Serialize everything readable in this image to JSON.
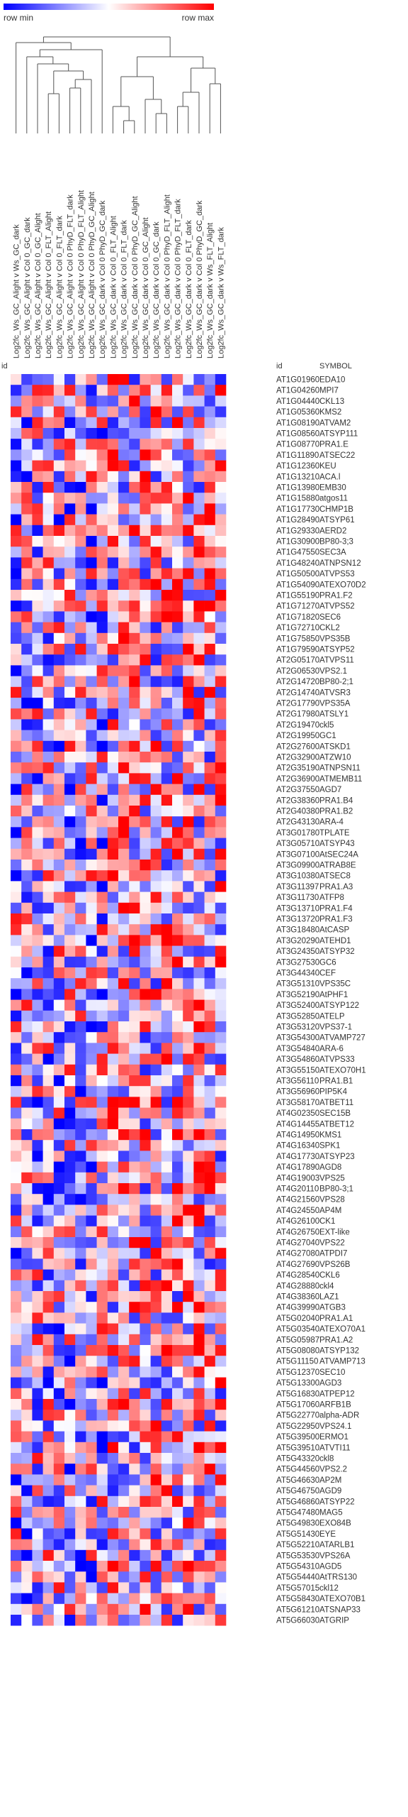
{
  "legend": {
    "min_label": "row min",
    "max_label": "row max",
    "min_color": "#0000ff",
    "mid_color": "#ffffff",
    "max_color": "#ff0000"
  },
  "headers": {
    "id_left": "id",
    "id_right": "id",
    "symbol": "SYMBOL"
  },
  "chart_data": {
    "type": "heatmap",
    "columns": [
      "Log2fc_Ws_GC_Alight v Ws_GC_dark",
      "Log2fc_Ws_GC_Alight v Col 0_GC_dark",
      "Log2fc_Ws_GC_Alight v Col 0_GC_Alight",
      "Log2fc_Ws_GC_Alight v Col 0_FLT_Alight",
      "Log2fc_Ws_GC_Alight v Col 0_FLT_dark",
      "Log2fc_Ws_GC_Alight v Col 0 PhyD_FLT_dark",
      "Log2fc_Ws_GC_Alight v Col 0 PhyD_FLT_Alight",
      "Log2fc_Ws_GC_Alight v Col 0 PhyD_GC_Alight",
      "Log2fc_Ws_GC_dark v Col 0 PhyD_GC_dark",
      "Log2fc_Ws_GC_dark v Col 0_FLT_Alight",
      "Log2fc_Ws_GC_dark v Col 0_FLT_dark",
      "Log2fc_Ws_GC_dark v Col 0 PhyD_GC_Alight",
      "Log2fc_Ws_GC_dark v Col 0_GC_Alight",
      "Log2fc_Ws_GC_dark v Col 0_GC_dark",
      "Log2fc_Ws_GC_dark v Col 0 PhyD_FLT_Alight",
      "Log2fc_Ws_GC_dark v Col 0 PhyD_FLT_dark",
      "Log2fc_Ws_GC_dark v Col 0_FLT_dark",
      "Log2fc_Ws_GC_dark v Col 0 PhyD_GC_dark",
      "Log2fc_Ws_GC_dark v Ws_FLT_Alight",
      "Log2fc_Ws_GC_dark v Ws_FLT_dark"
    ],
    "rows": [
      {
        "id": "AT1G01960",
        "symbol": "EDA10"
      },
      {
        "id": "AT1G04260",
        "symbol": "MPI7"
      },
      {
        "id": "AT1G04440",
        "symbol": "CKL13"
      },
      {
        "id": "AT1G05360",
        "symbol": "KMS2"
      },
      {
        "id": "AT1G08190",
        "symbol": "ATVAM2"
      },
      {
        "id": "AT1G08560",
        "symbol": "ATSYP111"
      },
      {
        "id": "AT1G08770",
        "symbol": "PRA1.E"
      },
      {
        "id": "AT1G11890",
        "symbol": "ATSEC22"
      },
      {
        "id": "AT1G12360",
        "symbol": "KEU"
      },
      {
        "id": "AT1G13210",
        "symbol": "ACA.l"
      },
      {
        "id": "AT1G13980",
        "symbol": "EMB30"
      },
      {
        "id": "AT1G15880",
        "symbol": "atgos11"
      },
      {
        "id": "AT1G17730",
        "symbol": "CHMP1B"
      },
      {
        "id": "AT1G28490",
        "symbol": "ATSYP61"
      },
      {
        "id": "AT1G29330",
        "symbol": "AERD2"
      },
      {
        "id": "AT1G30900",
        "symbol": "BP80-3;3"
      },
      {
        "id": "AT1G47550",
        "symbol": "SEC3A"
      },
      {
        "id": "AT1G48240",
        "symbol": "ATNPSN12"
      },
      {
        "id": "AT1G50500",
        "symbol": "ATVPS53"
      },
      {
        "id": "AT1G54090",
        "symbol": "ATEXO70D2"
      },
      {
        "id": "AT1G55190",
        "symbol": "PRA1.F2"
      },
      {
        "id": "AT1G71270",
        "symbol": "ATVPS52"
      },
      {
        "id": "AT1G71820",
        "symbol": "SEC6"
      },
      {
        "id": "AT1G72710",
        "symbol": "CKL2"
      },
      {
        "id": "AT1G75850",
        "symbol": "VPS35B"
      },
      {
        "id": "AT1G79590",
        "symbol": "ATSYP52"
      },
      {
        "id": "AT2G05170",
        "symbol": "ATVPS11"
      },
      {
        "id": "AT2G06530",
        "symbol": "VPS2.1"
      },
      {
        "id": "AT2G14720",
        "symbol": "BP80-2;1"
      },
      {
        "id": "AT2G14740",
        "symbol": "ATVSR3"
      },
      {
        "id": "AT2G17790",
        "symbol": "VPS35A"
      },
      {
        "id": "AT2G17980",
        "symbol": "ATSLY1"
      },
      {
        "id": "AT2G19470",
        "symbol": "ckl5"
      },
      {
        "id": "AT2G19950",
        "symbol": "GC1"
      },
      {
        "id": "AT2G27600",
        "symbol": "ATSKD1"
      },
      {
        "id": "AT2G32900",
        "symbol": "ATZW10"
      },
      {
        "id": "AT2G35190",
        "symbol": "ATNPSN11"
      },
      {
        "id": "AT2G36900",
        "symbol": "ATMEMB11"
      },
      {
        "id": "AT2G37550",
        "symbol": "AGD7"
      },
      {
        "id": "AT2G38360",
        "symbol": "PRA1.B4"
      },
      {
        "id": "AT2G40380",
        "symbol": "PRA1.B2"
      },
      {
        "id": "AT2G43130",
        "symbol": "ARA-4"
      },
      {
        "id": "AT3G01780",
        "symbol": "TPLATE"
      },
      {
        "id": "AT3G05710",
        "symbol": "ATSYP43"
      },
      {
        "id": "AT3G07100",
        "symbol": "AtSEC24A"
      },
      {
        "id": "AT3G09900",
        "symbol": "ATRAB8E"
      },
      {
        "id": "AT3G10380",
        "symbol": "ATSEC8"
      },
      {
        "id": "AT3G11397",
        "symbol": "PRA1.A3"
      },
      {
        "id": "AT3G11730",
        "symbol": "ATFP8"
      },
      {
        "id": "AT3G13710",
        "symbol": "PRA1.F4"
      },
      {
        "id": "AT3G13720",
        "symbol": "PRA1.F3"
      },
      {
        "id": "AT3G18480",
        "symbol": "AtCASP"
      },
      {
        "id": "AT3G20290",
        "symbol": "ATEHD1"
      },
      {
        "id": "AT3G24350",
        "symbol": "ATSYP32"
      },
      {
        "id": "AT3G27530",
        "symbol": "GC6"
      },
      {
        "id": "AT3G44340",
        "symbol": "CEF"
      },
      {
        "id": "AT3G51310",
        "symbol": "VPS35C"
      },
      {
        "id": "AT3G52190",
        "symbol": "AtPHF1"
      },
      {
        "id": "AT3G52400",
        "symbol": "ATSYP122"
      },
      {
        "id": "AT3G52850",
        "symbol": "ATELP"
      },
      {
        "id": "AT3G53120",
        "symbol": "VPS37-1"
      },
      {
        "id": "AT3G54300",
        "symbol": "ATVAMP727"
      },
      {
        "id": "AT3G54840",
        "symbol": "ARA-6"
      },
      {
        "id": "AT3G54860",
        "symbol": "ATVPS33"
      },
      {
        "id": "AT3G55150",
        "symbol": "ATEXO70H1"
      },
      {
        "id": "AT3G56110",
        "symbol": "PRA1.B1"
      },
      {
        "id": "AT3G56960",
        "symbol": "PIP5K4"
      },
      {
        "id": "AT3G58170",
        "symbol": "ATBET11"
      },
      {
        "id": "AT4G02350",
        "symbol": "SEC15B"
      },
      {
        "id": "AT4G14455",
        "symbol": "ATBET12"
      },
      {
        "id": "AT4G14950",
        "symbol": "KMS1"
      },
      {
        "id": "AT4G16340",
        "symbol": "SPK1"
      },
      {
        "id": "AT4G17730",
        "symbol": "ATSYP23"
      },
      {
        "id": "AT4G17890",
        "symbol": "AGD8"
      },
      {
        "id": "AT4G19003",
        "symbol": "VPS25"
      },
      {
        "id": "AT4G20110",
        "symbol": "BP80-3;1"
      },
      {
        "id": "AT4G21560",
        "symbol": "VPS28"
      },
      {
        "id": "AT4G24550",
        "symbol": "AP4M"
      },
      {
        "id": "AT4G26100",
        "symbol": "CK1"
      },
      {
        "id": "AT4G26750",
        "symbol": "EXT-like"
      },
      {
        "id": "AT4G27040",
        "symbol": "VPS22"
      },
      {
        "id": "AT4G27080",
        "symbol": "ATPDI7"
      },
      {
        "id": "AT4G27690",
        "symbol": "VPS26B"
      },
      {
        "id": "AT4G28540",
        "symbol": "CKL6"
      },
      {
        "id": "AT4G28880",
        "symbol": "ckl4"
      },
      {
        "id": "AT4G38360",
        "symbol": "LAZ1"
      },
      {
        "id": "AT4G39990",
        "symbol": "ATGB3"
      },
      {
        "id": "AT5G02040",
        "symbol": "PRA1.A1"
      },
      {
        "id": "AT5G03540",
        "symbol": "ATEXO70A1"
      },
      {
        "id": "AT5G05987",
        "symbol": "PRA1.A2"
      },
      {
        "id": "AT5G08080",
        "symbol": "ATSYP132"
      },
      {
        "id": "AT5G11150",
        "symbol": "ATVAMP713"
      },
      {
        "id": "AT5G12370",
        "symbol": "SEC10"
      },
      {
        "id": "AT5G13300",
        "symbol": "AGD3"
      },
      {
        "id": "AT5G16830",
        "symbol": "ATPEP12"
      },
      {
        "id": "AT5G17060",
        "symbol": "ARFB1B"
      },
      {
        "id": "AT5G22770",
        "symbol": "alpha-ADR"
      },
      {
        "id": "AT5G22950",
        "symbol": "VPS24.1"
      },
      {
        "id": "AT5G39500",
        "symbol": "ERMO1"
      },
      {
        "id": "AT5G39510",
        "symbol": "ATVTI11"
      },
      {
        "id": "AT5G43320",
        "symbol": "ckl8"
      },
      {
        "id": "AT5G44560",
        "symbol": "VPS2.2"
      },
      {
        "id": "AT5G46630",
        "symbol": "AP2M"
      },
      {
        "id": "AT5G46750",
        "symbol": "AGD9"
      },
      {
        "id": "AT5G46860",
        "symbol": "ATSYP22"
      },
      {
        "id": "AT5G47480",
        "symbol": "MAG5"
      },
      {
        "id": "AT5G49830",
        "symbol": "EXO84B"
      },
      {
        "id": "AT5G51430",
        "symbol": "EYE"
      },
      {
        "id": "AT5G52210",
        "symbol": "ATARLB1"
      },
      {
        "id": "AT5G53530",
        "symbol": "VPS26A"
      },
      {
        "id": "AT5G54310",
        "symbol": "AGD5"
      },
      {
        "id": "AT5G54440",
        "symbol": "AtTRS130"
      },
      {
        "id": "AT5G57015",
        "symbol": "ckl12"
      },
      {
        "id": "AT5G58430",
        "symbol": "ATEXO70B1"
      },
      {
        "id": "AT5G61210",
        "symbol": "ATSNAP33"
      },
      {
        "id": "AT5G66030",
        "symbol": "ATGRIP"
      }
    ],
    "seed_note": "",
    "value_range": [
      -1,
      1
    ],
    "colormap": [
      "#0000ff",
      "#ffffff",
      "#ff0000"
    ],
    "row_normalization": "row min to row max"
  }
}
